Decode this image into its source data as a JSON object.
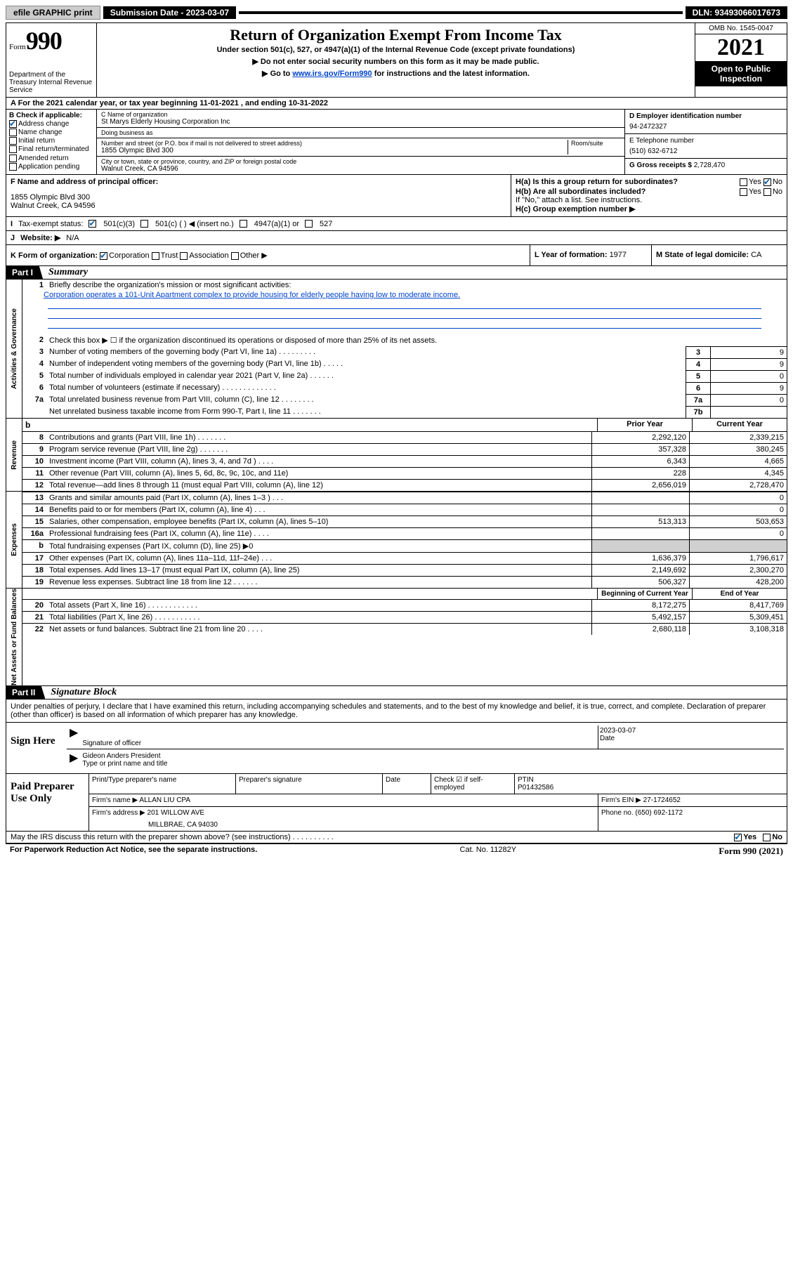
{
  "topbar": {
    "efile": "efile GRAPHIC print",
    "submission_label": "Submission Date - 2023-03-07",
    "dln": "DLN: 93493066017673"
  },
  "header": {
    "form_label": "Form",
    "form_num": "990",
    "dept": "Department of the Treasury Internal Revenue Service",
    "title": "Return of Organization Exempt From Income Tax",
    "sub": "Under section 501(c), 527, or 4947(a)(1) of the Internal Revenue Code (except private foundations)",
    "instr1": "▶ Do not enter social security numbers on this form as it may be made public.",
    "instr2_pre": "▶ Go to ",
    "instr2_link": "www.irs.gov/Form990",
    "instr2_post": " for instructions and the latest information.",
    "omb": "OMB No. 1545-0047",
    "taxyear": "2021",
    "open_public": "Open to Public Inspection"
  },
  "period": {
    "label_a": "A For the 2021 calendar year, or tax year beginning ",
    "begin": "11-01-2021",
    "label_b": " , and ending ",
    "end": "10-31-2022"
  },
  "checkb": {
    "label": "B Check if applicable:",
    "items": [
      {
        "label": "Address change",
        "checked": true
      },
      {
        "label": "Name change",
        "checked": false
      },
      {
        "label": "Initial return",
        "checked": false
      },
      {
        "label": "Final return/terminated",
        "checked": false
      },
      {
        "label": "Amended return",
        "checked": false
      },
      {
        "label": "Application pending",
        "checked": false
      }
    ]
  },
  "entity": {
    "name_label": "C Name of organization",
    "name": "St Marys Elderly Housing Corporation Inc",
    "dba_label": "Doing business as",
    "dba": "",
    "street_label": "Number and street (or P.O. box if mail is not delivered to street address)",
    "room_label": "Room/suite",
    "street": "1855 Olympic Blvd 300",
    "city_label": "City or town, state or province, country, and ZIP or foreign postal code",
    "city": "Walnut Creek, CA  94596",
    "ein_label": "D Employer identification number",
    "ein": "94-2472327",
    "phone_label": "E Telephone number",
    "phone": "(510) 632-6712",
    "gross_label": "G Gross receipts $ ",
    "gross": "2,728,470"
  },
  "officer": {
    "label": "F Name and address of principal officer:",
    "addr1": "1855 Olympic Blvd 300",
    "addr2": "Walnut Creek, CA  94596"
  },
  "h": {
    "ha_label": "H(a) Is this a group return for subordinates?",
    "ha_yes": "Yes",
    "ha_no": "No",
    "hb_label": "H(b) Are all subordinates included?",
    "hb_note": "If \"No,\" attach a list. See instructions.",
    "hc_label": "H(c) Group exemption number ▶"
  },
  "tex": {
    "label_i": "I",
    "label": "Tax-exempt status:",
    "c3": "501(c)(3)",
    "c": "501(c) (   ) ◀ (insert no.)",
    "a1": "4947(a)(1) or",
    "s527": "527"
  },
  "website": {
    "label_j": "J",
    "label": "Website: ▶",
    "value": "N/A"
  },
  "korg": {
    "label_k": "K Form of organization:",
    "corp": "Corporation",
    "trust": "Trust",
    "assoc": "Association",
    "other": "Other ▶",
    "l_label": "L Year of formation: ",
    "l_val": "1977",
    "m_label": "M State of legal domicile: ",
    "m_val": "CA"
  },
  "part1": {
    "tab": "Part I",
    "title": "Summary",
    "q1": "Briefly describe the organization's mission or most significant activities:",
    "mission": "Corporation operates a 101-Unit Apartment complex to provide housing for elderly people having low to moderate income.",
    "q2": "Check this box ▶ ☐ if the organization discontinued its operations or disposed of more than 25% of its net assets.",
    "gov": [
      {
        "n": "3",
        "t": "Number of voting members of the governing body (Part VI, line 1a)   .   .   .   .   .   .   .   .   .",
        "b": "3",
        "v": "9"
      },
      {
        "n": "4",
        "t": "Number of independent voting members of the governing body (Part VI, line 1b)   .   .   .   .   .",
        "b": "4",
        "v": "9"
      },
      {
        "n": "5",
        "t": "Total number of individuals employed in calendar year 2021 (Part V, line 2a)   .   .   .   .   .   .",
        "b": "5",
        "v": "0"
      },
      {
        "n": "6",
        "t": "Total number of volunteers (estimate if necessary)   .   .   .   .   .   .   .   .   .   .   .   .   .",
        "b": "6",
        "v": "9"
      },
      {
        "n": "7a",
        "t": "Total unrelated business revenue from Part VIII, column (C), line 12   .   .   .   .   .   .   .   .",
        "b": "7a",
        "v": "0"
      },
      {
        "n": "",
        "t": "Net unrelated business taxable income from Form 990-T, Part I, line 11   .   .   .   .   .   .   .",
        "b": "7b",
        "v": ""
      }
    ],
    "head_prior": "Prior Year",
    "head_current": "Current Year",
    "revenue": [
      {
        "n": "8",
        "t": "Contributions and grants (Part VIII, line 1h)   .   .   .   .   .   .   .",
        "a": "2,292,120",
        "b": "2,339,215"
      },
      {
        "n": "9",
        "t": "Program service revenue (Part VIII, line 2g)   .   .   .   .   .   .   .",
        "a": "357,328",
        "b": "380,245"
      },
      {
        "n": "10",
        "t": "Investment income (Part VIII, column (A), lines 3, 4, and 7d )   .   .   .   .",
        "a": "6,343",
        "b": "4,665"
      },
      {
        "n": "11",
        "t": "Other revenue (Part VIII, column (A), lines 5, 6d, 8c, 9c, 10c, and 11e)",
        "a": "228",
        "b": "4,345"
      },
      {
        "n": "12",
        "t": "Total revenue—add lines 8 through 11 (must equal Part VIII, column (A), line 12)",
        "a": "2,656,019",
        "b": "2,728,470"
      }
    ],
    "expenses": [
      {
        "n": "13",
        "t": "Grants and similar amounts paid (Part IX, column (A), lines 1–3 )   .   .   .",
        "a": "",
        "b": "0"
      },
      {
        "n": "14",
        "t": "Benefits paid to or for members (Part IX, column (A), line 4)   .   .   .",
        "a": "",
        "b": "0"
      },
      {
        "n": "15",
        "t": "Salaries, other compensation, employee benefits (Part IX, column (A), lines 5–10)",
        "a": "513,313",
        "b": "503,653"
      },
      {
        "n": "16a",
        "t": "Professional fundraising fees (Part IX, column (A), line 11e)   .   .   .   .",
        "a": "",
        "b": "0"
      },
      {
        "n": "b",
        "t": "Total fundraising expenses (Part IX, column (D), line 25) ▶0",
        "a": "shade",
        "b": "shade"
      },
      {
        "n": "17",
        "t": "Other expenses (Part IX, column (A), lines 11a–11d, 11f–24e)   .   .   .",
        "a": "1,636,379",
        "b": "1,796,617"
      },
      {
        "n": "18",
        "t": "Total expenses. Add lines 13–17 (must equal Part IX, column (A), line 25)",
        "a": "2,149,692",
        "b": "2,300,270"
      },
      {
        "n": "19",
        "t": "Revenue less expenses. Subtract line 18 from line 12   .   .   .   .   .   .",
        "a": "506,327",
        "b": "428,200"
      }
    ],
    "head_begin": "Beginning of Current Year",
    "head_end": "End of Year",
    "netassets": [
      {
        "n": "20",
        "t": "Total assets (Part X, line 16)   .   .   .   .   .   .   .   .   .   .   .   .",
        "a": "8,172,275",
        "b": "8,417,769"
      },
      {
        "n": "21",
        "t": "Total liabilities (Part X, line 26)   .   .   .   .   .   .   .   .   .   .   .",
        "a": "5,492,157",
        "b": "5,309,451"
      },
      {
        "n": "22",
        "t": "Net assets or fund balances. Subtract line 21 from line 20   .   .   .   .",
        "a": "2,680,118",
        "b": "3,108,318"
      }
    ],
    "vtab_gov": "Activities & Governance",
    "vtab_rev": "Revenue",
    "vtab_exp": "Expenses",
    "vtab_net": "Net Assets or Fund Balances"
  },
  "part2": {
    "tab": "Part II",
    "title": "Signature Block",
    "intro": "Under penalties of perjury, I declare that I have examined this return, including accompanying schedules and statements, and to the best of my knowledge and belief, it is true, correct, and complete. Declaration of preparer (other than officer) is based on all information of which preparer has any knowledge.",
    "sign_here": "Sign Here",
    "sig_officer": "Signature of officer",
    "sig_date_label": "Date",
    "sig_date": "2023-03-07",
    "officer_name": "Gideon Anders  President",
    "officer_sub": "Type or print name and title",
    "paid_prep": "Paid Preparer Use Only",
    "prep_name_label": "Print/Type preparer's name",
    "prep_sig_label": "Preparer's signature",
    "prep_date_label": "Date",
    "prep_self_label": "Check ☑ if self-employed",
    "ptin_label": "PTIN",
    "ptin": "P01432586",
    "firm_name_label": "Firm's name     ▶",
    "firm_name": "ALLAN LIU CPA",
    "firm_ein_label": "Firm's EIN ▶",
    "firm_ein": "27-1724652",
    "firm_addr_label": "Firm's address ▶",
    "firm_addr1": "201 WILLOW AVE",
    "firm_addr2": "MILLBRAE, CA  94030",
    "firm_phone_label": "Phone no. ",
    "firm_phone": "(650) 692-1172"
  },
  "footer": {
    "discuss": "May the IRS discuss this return with the preparer shown above? (see instructions)   .   .   .   .   .   .   .   .   .   .",
    "yes": "Yes",
    "no": "No",
    "paperwork": "For Paperwork Reduction Act Notice, see the separate instructions.",
    "catno": "Cat. No. 11282Y",
    "formver": "Form 990 (2021)"
  }
}
